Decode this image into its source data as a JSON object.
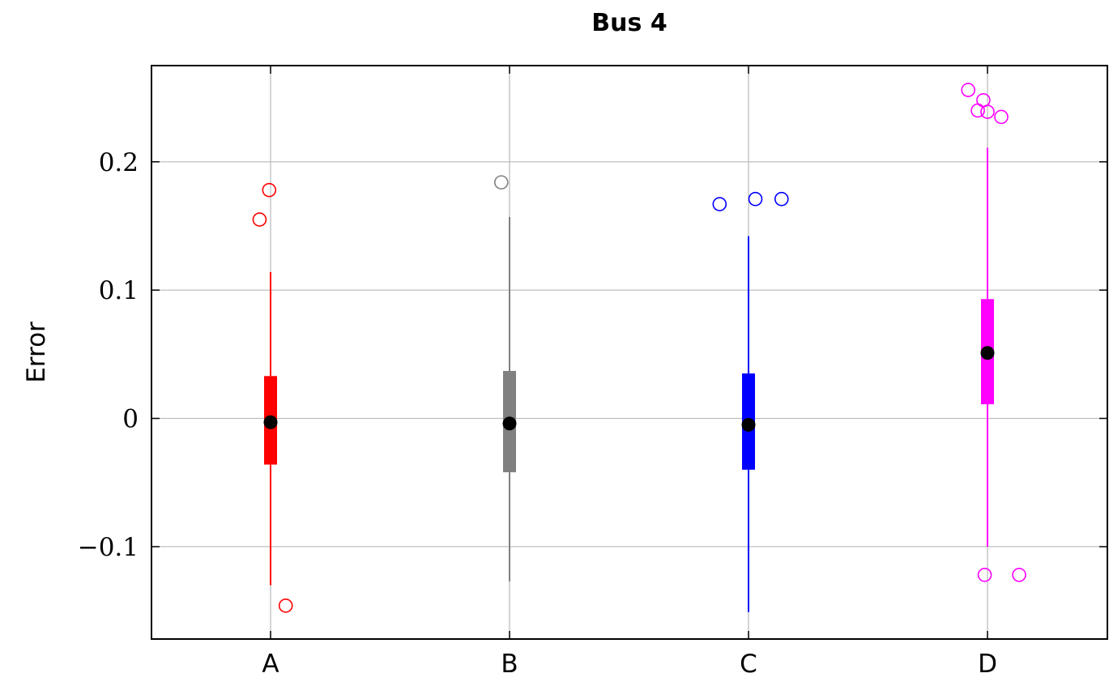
{
  "chart_data": {
    "type": "box",
    "title": "Bus 4",
    "xlabel": "",
    "ylabel": "Error",
    "ylim": [
      -0.172,
      0.275
    ],
    "yticks": [
      {
        "value": -0.1,
        "label": "−0.1"
      },
      {
        "value": 0,
        "label": "0"
      },
      {
        "value": 0.1,
        "label": "0.1"
      },
      {
        "value": 0.2,
        "label": "0.2"
      }
    ],
    "grid": true,
    "categories": [
      "A",
      "B",
      "C",
      "D"
    ],
    "series": [
      {
        "name": "A",
        "color": "#ff0000",
        "whisker_low": -0.13,
        "q1": -0.036,
        "median": -0.003,
        "q3": 0.033,
        "whisker_high": 0.114,
        "outliers": [
          {
            "y": 0.178,
            "jitter": -0.01
          },
          {
            "y": 0.155,
            "jitter": -0.08
          },
          {
            "y": -0.146,
            "jitter": 0.11
          }
        ]
      },
      {
        "name": "B",
        "color": "#808080",
        "whisker_low": -0.127,
        "q1": -0.042,
        "median": -0.004,
        "q3": 0.037,
        "whisker_high": 0.157,
        "outliers": [
          {
            "y": 0.184,
            "jitter": -0.06
          }
        ]
      },
      {
        "name": "C",
        "color": "#0000ff",
        "whisker_low": -0.151,
        "q1": -0.04,
        "median": -0.005,
        "q3": 0.035,
        "whisker_high": 0.142,
        "outliers": [
          {
            "y": 0.167,
            "jitter": -0.21
          },
          {
            "y": 0.171,
            "jitter": 0.05
          },
          {
            "y": 0.171,
            "jitter": 0.24
          }
        ]
      },
      {
        "name": "D",
        "color": "#ff00ff",
        "whisker_low": -0.1,
        "q1": 0.011,
        "median": 0.051,
        "q3": 0.093,
        "whisker_high": 0.211,
        "outliers": [
          {
            "y": 0.256,
            "jitter": -0.14
          },
          {
            "y": 0.248,
            "jitter": -0.03
          },
          {
            "y": 0.24,
            "jitter": -0.07
          },
          {
            "y": 0.239,
            "jitter": 0.0
          },
          {
            "y": 0.235,
            "jitter": 0.1
          },
          {
            "y": -0.122,
            "jitter": -0.02
          },
          {
            "y": -0.122,
            "jitter": 0.23
          }
        ]
      }
    ]
  }
}
